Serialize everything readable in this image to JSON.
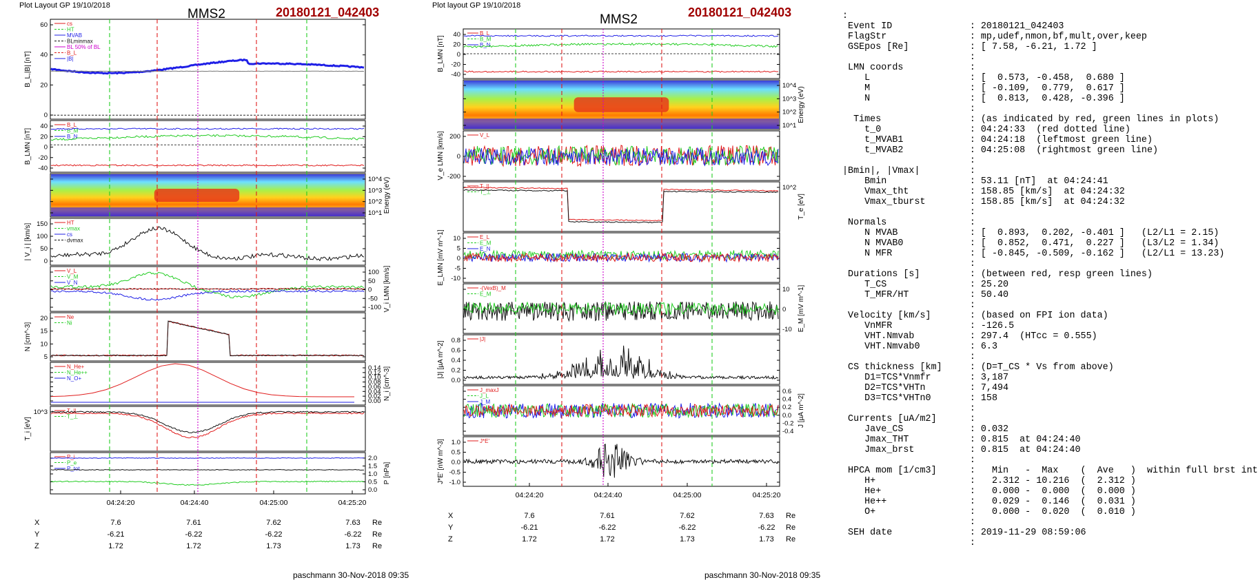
{
  "left": {
    "header": "Plot Layout GP 19/10/2018",
    "title": "MMS2",
    "event": "20180121_042403",
    "footer": "paschmann 30-Nov-2018 09:35",
    "x_ticks": [
      "04:24:20",
      "04:24:40",
      "04:25:00",
      "04:25:20"
    ],
    "coords": {
      "labels": [
        "X",
        "Y",
        "Z"
      ],
      "unit": "Re",
      "X": [
        "7.6",
        "7.61",
        "7.62",
        "7.63"
      ],
      "Y": [
        "-6.21",
        "-6.22",
        "-6.22",
        "-6.22"
      ],
      "Z": [
        "1.72",
        "1.72",
        "1.73",
        "1.73"
      ]
    },
    "panels": [
      {
        "ylabel": "B_L,|B| [nT]",
        "ticks": [
          "60",
          "40",
          "20",
          "0"
        ],
        "legend": [
          "cs",
          "HT",
          "MVAB",
          "BLminmax",
          "BL 50% of BL",
          "B_L",
          "|B|"
        ]
      },
      {
        "ylabel": "B_LMN [nT]",
        "ticks": [
          "40",
          "20",
          "0",
          "-20",
          "-40"
        ],
        "legend": [
          "B_L",
          "B_M",
          "B_N"
        ]
      },
      {
        "ylabel": "Energy (eV)",
        "ticks": [
          "10^4",
          "10^3",
          "10^2",
          "10^1"
        ]
      },
      {
        "ylabel": "| V_i | [km/s]",
        "ticks": [
          "150",
          "100",
          "50",
          "0"
        ],
        "legend": [
          "HT",
          "vmax",
          "cs",
          "dvmax"
        ]
      },
      {
        "ylabel": "V_i LMN [km/s]",
        "ticks": [
          "100",
          "50",
          "0",
          "-50",
          "-100"
        ],
        "legend": [
          "V_L",
          "V_M",
          "V_N"
        ]
      },
      {
        "ylabel": "N [cm^-3]",
        "ticks": [
          "20",
          "15",
          "10",
          "5"
        ],
        "legend": [
          "Ne",
          "Ni"
        ]
      },
      {
        "ylabel": "N_i [cm^-3]",
        "ticks": [
          "0.14",
          "0.12",
          "0.10",
          "0.08",
          "0.06",
          "0.04",
          "0.02",
          "0.00"
        ],
        "legend": [
          "N_He+",
          "N_He++",
          "N_O+"
        ]
      },
      {
        "ylabel": "T_i [eV]",
        "ticks": [
          "10^3"
        ],
        "legend": [
          "T_||",
          "T_⊥"
        ]
      },
      {
        "ylabel": "P [nPa]",
        "ticks": [
          "2.0",
          "1.5",
          "1.0",
          "0.5",
          "0.0"
        ],
        "legend": [
          "P_i",
          "P_e",
          "P_tot"
        ]
      }
    ]
  },
  "middle": {
    "header": "Plot layout GP 19/10/2018",
    "title": "MMS2",
    "event": "20180121_042403",
    "footer": "paschmann 30-Nov-2018 09:35",
    "x_ticks": [
      "04:24:20",
      "04:24:40",
      "04:25:00",
      "04:25:20"
    ],
    "coords": {
      "labels": [
        "X",
        "Y",
        "Z"
      ],
      "unit": "Re",
      "X": [
        "7.6",
        "7.61",
        "7.62",
        "7.63"
      ],
      "Y": [
        "-6.21",
        "-6.22",
        "-6.22",
        "-6.22"
      ],
      "Z": [
        "1.72",
        "1.72",
        "1.73",
        "1.73"
      ]
    },
    "panels": [
      {
        "ylabel": "B_LMN [nT]",
        "ticks": [
          "40",
          "20",
          "0",
          "-20",
          "-40"
        ],
        "legend": [
          "B_L",
          "B_M",
          "B_N"
        ]
      },
      {
        "ylabel": "Energy (eV)",
        "ticks": [
          "10^4",
          "10^3",
          "10^2",
          "10^1"
        ]
      },
      {
        "ylabel": "V_e LMN [km/s]",
        "ticks": [
          "200",
          "0",
          "-200"
        ],
        "legend": [
          "V_L"
        ]
      },
      {
        "ylabel": "T_e [eV]",
        "ticks": [
          "10^2"
        ],
        "legend": [
          "T_||",
          "T_⊥"
        ]
      },
      {
        "ylabel": "E_LMN [mV m^-1]",
        "ticks": [
          "10",
          "5",
          "0",
          "-5",
          "-10"
        ],
        "legend": [
          "E_L",
          "E_M",
          "E_N"
        ]
      },
      {
        "ylabel": "E_M [mV m^-1]",
        "ticks": [
          "10",
          "0",
          "-10"
        ],
        "legend": [
          "-(VexB)_M",
          "E_M"
        ]
      },
      {
        "ylabel": "|J| [µA m^-2]",
        "ticks": [
          "0.8",
          "0.6",
          "0.4",
          "0.2",
          "0.0"
        ],
        "legend": [
          "|J|"
        ]
      },
      {
        "ylabel": "J [µA m^-2]",
        "ticks": [
          "0.6",
          "0.4",
          "0.2",
          "0.0",
          "-0.2",
          "-0.4"
        ],
        "legend": [
          "J_maxJ",
          "J_L",
          "J_M"
        ]
      },
      {
        "ylabel": "J*E' [nW m^-3]",
        "ticks": [
          "1.0",
          "0.5",
          "0.0",
          "-0.5",
          "-1.0"
        ],
        "legend": [
          "J*E'"
        ]
      }
    ]
  },
  "text_panel": {
    "lines": [
      ":",
      " Event ID              : 20180121_042403",
      " FlagStr               : mp,udef,nmon,bf,mult,over,keep",
      " GSEpos [Re]           : [ 7.58, -6.21, 1.72 ]",
      "                       :",
      " LMN coords            :",
      "    L                  : [  0.573, -0.458,  0.680 ]",
      "    M                  : [ -0.109,  0.779,  0.617 ]",
      "    N                  : [  0.813,  0.428, -0.396 ]",
      "                       :",
      "  Times                : (as indicated by red, green lines in plots)",
      "    t_0                : 04:24:33  (red dotted line)",
      "    t_MVAB1            : 04:24:18  (leftmost green line)",
      "    t_MVAB2            : 04:25:08  (rightmost green line)",
      "                       :",
      "|Bmin|, |Vmax|         :",
      "    Bmin               : 53.11 [nT]  at 04:24:41",
      "    Vmax_tht           : 158.85 [km/s]  at 04:24:32",
      "    Vmax_tburst        : 158.85 [km/s]  at 04:24:32",
      "                       :",
      " Normals               :",
      "    N MVAB             : [  0.893,  0.202, -0.401 ]   (L2/L1 = 2.15)",
      "    N MVAB0            : [  0.852,  0.471,  0.227 ]   (L3/L2 = 1.34)",
      "    N MFR              : [ -0.845, -0.509, -0.162 ]   (L2/L1 = 13.23)",
      "                       :",
      " Durations [s]         : (between red, resp green lines)",
      "    T_CS               : 25.20",
      "    T_MFR/HT           : 50.40",
      "                       :",
      " Velocity [km/s]       : (based on FPI ion data)",
      "    VnMFR              : -126.5",
      "    VHT.Nmvab          : 297.4  (HTcc = 0.555)",
      "    VHT.Nmvab0         : 6.3",
      "                       :",
      " CS thickness [km]     : (D=T_CS * Vs from above)",
      "    D1=TCS*Vnmfr       : 3,187",
      "    D2=TCS*VHTn        : 7,494",
      "    D3=TCS*VHTn0       : 158",
      "                       :",
      " Currents [uA/m2]      :",
      "    Jave_CS            : 0.032",
      "    Jmax_THT           : 0.815  at 04:24:40",
      "    Jmax_brst          : 0.815  at 04:24:40",
      "                       :",
      " HPCA mom [1/cm3]      :   Min   -  Max    (  Ave   )  within full brst int",
      "    H+                 :   2.312 - 10.216  (  2.312 )",
      "    He+                :   0.000 -  0.000  (  0.000 )",
      "    He++               :   0.029 -  0.146  (  0.031 )",
      "    O+                 :   0.000 -  0.020  (  0.010 )",
      "                       :",
      " SEH date              : 2019-11-29 08:59:06",
      "                       :"
    ]
  },
  "colors": {
    "blue": "#1f1fe6",
    "green": "#22cc22",
    "red": "#e01b1b",
    "black": "#111111",
    "magenta": "#cc00cc",
    "darkred": "#a00000"
  },
  "chart_data": [
    {
      "type": "line",
      "title": "",
      "x_ticks": [
        "04:24:20",
        "04:24:40",
        "04:25:00",
        "04:25:20"
      ],
      "markers": {
        "green_dashed": [
          "04:24:18",
          "04:25:08"
        ],
        "red_dashed": [
          "04:24:33",
          "04:24:58"
        ],
        "magenta_dotted": [
          "04:24:40"
        ]
      },
      "panels": [
        "B_L,|B| [nT]",
        "B_LMN [nT]",
        "Energy (eV)",
        "| V_i | [km/s]",
        "V_i LMN [km/s]",
        "N [cm^-3]",
        "N_i [cm^-3]",
        "T_i [eV]",
        "P [nPa]"
      ]
    },
    {
      "type": "line",
      "title": "",
      "x_ticks": [
        "04:24:20",
        "04:24:40",
        "04:25:00",
        "04:25:20"
      ],
      "panels": [
        "B_LMN [nT]",
        "Energy (eV)",
        "V_e LMN [km/s]",
        "T_e [eV]",
        "E_LMN [mV m^-1]",
        "E_M [mV m^-1]",
        "|J| [µA m^-2]",
        "J [µA m^-2]",
        "J*E' [nW m^-3]"
      ]
    }
  ]
}
